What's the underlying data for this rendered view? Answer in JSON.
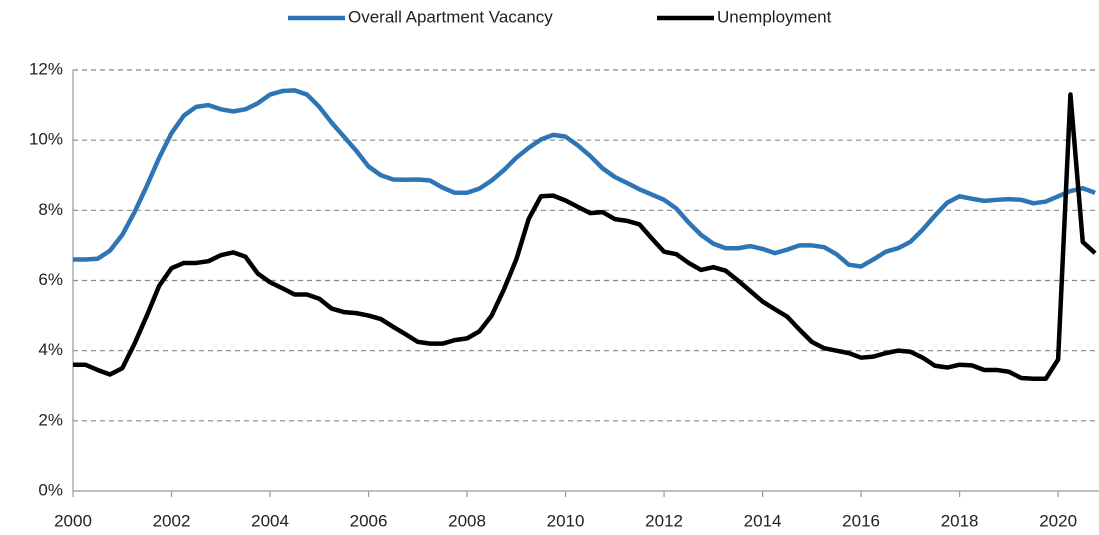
{
  "chart_data": {
    "type": "line",
    "x": [
      2000,
      2000.25,
      2000.5,
      2000.75,
      2001,
      2001.25,
      2001.5,
      2001.75,
      2002,
      2002.25,
      2002.5,
      2002.75,
      2003,
      2003.25,
      2003.5,
      2003.75,
      2004,
      2004.25,
      2004.5,
      2004.75,
      2005,
      2005.25,
      2005.5,
      2005.75,
      2006,
      2006.25,
      2006.5,
      2006.75,
      2007,
      2007.25,
      2007.5,
      2007.75,
      2008,
      2008.25,
      2008.5,
      2008.75,
      2009,
      2009.25,
      2009.5,
      2009.75,
      2010,
      2010.25,
      2010.5,
      2010.75,
      2011,
      2011.25,
      2011.5,
      2011.75,
      2012,
      2012.25,
      2012.5,
      2012.75,
      2013,
      2013.25,
      2013.5,
      2013.75,
      2014,
      2014.25,
      2014.5,
      2014.75,
      2015,
      2015.25,
      2015.5,
      2015.75,
      2016,
      2016.25,
      2016.5,
      2016.75,
      2017,
      2017.25,
      2017.5,
      2017.75,
      2018,
      2018.25,
      2018.5,
      2018.75,
      2019,
      2019.25,
      2019.5,
      2019.75,
      2020,
      2020.25,
      2020.5,
      2020.75
    ],
    "series": [
      {
        "name": "Overall Apartment Vacancy",
        "color": "#2e75b6",
        "values": [
          6.6,
          6.6,
          6.62,
          6.85,
          7.3,
          7.95,
          8.7,
          9.5,
          10.2,
          10.7,
          10.95,
          11.0,
          10.88,
          10.82,
          10.88,
          11.05,
          11.3,
          11.4,
          11.42,
          11.3,
          10.95,
          10.5,
          10.1,
          9.7,
          9.25,
          9.0,
          8.88,
          8.87,
          8.88,
          8.85,
          8.65,
          8.5,
          8.5,
          8.62,
          8.85,
          9.15,
          9.5,
          9.78,
          10.02,
          10.15,
          10.1,
          9.85,
          9.55,
          9.2,
          8.95,
          8.78,
          8.6,
          8.45,
          8.3,
          8.05,
          7.65,
          7.3,
          7.05,
          6.92,
          6.92,
          6.98,
          6.9,
          6.78,
          6.88,
          7.0,
          7.0,
          6.95,
          6.75,
          6.45,
          6.4,
          6.6,
          6.82,
          6.92,
          7.1,
          7.45,
          7.85,
          8.22,
          8.4,
          8.33,
          8.27,
          8.3,
          8.32,
          8.3,
          8.2,
          8.25,
          8.4,
          8.55,
          8.63,
          8.5
        ]
      },
      {
        "name": "Unemployment",
        "color": "#000000",
        "values": [
          3.6,
          3.6,
          3.45,
          3.32,
          3.5,
          4.2,
          5.0,
          5.85,
          6.35,
          6.5,
          6.5,
          6.55,
          6.72,
          6.8,
          6.68,
          6.2,
          5.95,
          5.78,
          5.6,
          5.6,
          5.48,
          5.2,
          5.1,
          5.07,
          5.0,
          4.9,
          4.68,
          4.47,
          4.25,
          4.2,
          4.2,
          4.3,
          4.35,
          4.55,
          5.0,
          5.75,
          6.6,
          7.75,
          8.4,
          8.42,
          8.28,
          8.1,
          7.92,
          7.95,
          7.75,
          7.7,
          7.6,
          7.2,
          6.82,
          6.75,
          6.5,
          6.3,
          6.38,
          6.28,
          6.0,
          5.7,
          5.4,
          5.18,
          4.97,
          4.6,
          4.25,
          4.07,
          4.0,
          3.93,
          3.8,
          3.83,
          3.93,
          4.0,
          3.97,
          3.8,
          3.57,
          3.52,
          3.6,
          3.58,
          3.45,
          3.45,
          3.4,
          3.22,
          3.2,
          3.2,
          3.75,
          11.3,
          7.1,
          6.78
        ]
      }
    ],
    "xlim": [
      2000,
      2020.83
    ],
    "xticks": [
      2000,
      2002,
      2004,
      2006,
      2008,
      2010,
      2012,
      2014,
      2016,
      2018,
      2020
    ],
    "ylim": [
      0,
      12
    ],
    "yticks": [
      {
        "value": 0,
        "label": "0%"
      },
      {
        "value": 2,
        "label": "2%"
      },
      {
        "value": 4,
        "label": "4%"
      },
      {
        "value": 6,
        "label": "6%"
      },
      {
        "value": 8,
        "label": "8%"
      },
      {
        "value": 10,
        "label": "10%"
      },
      {
        "value": 12,
        "label": "12%"
      }
    ],
    "grid": true,
    "legend": "top"
  }
}
